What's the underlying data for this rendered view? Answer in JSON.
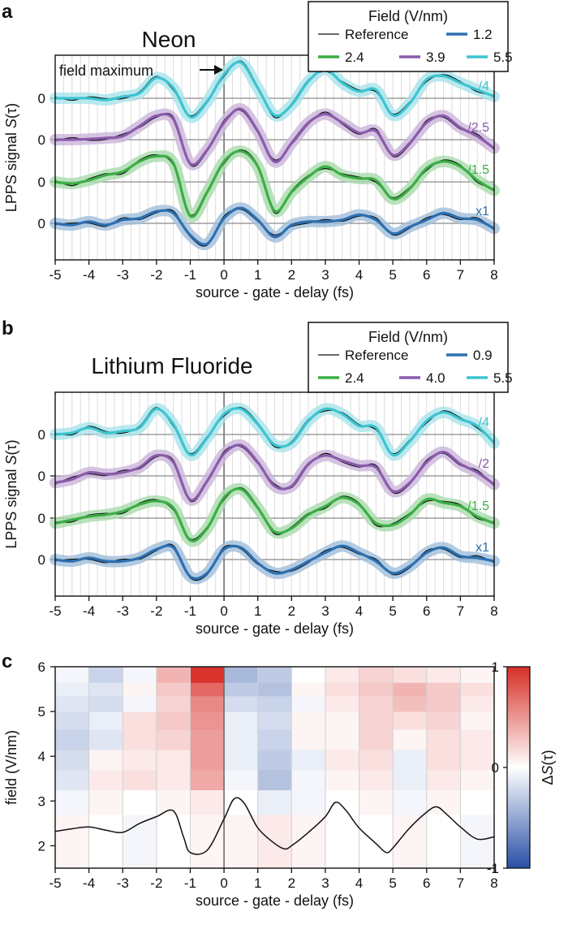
{
  "panels": [
    {
      "letter": "a",
      "title": "Neon",
      "legend_title": "Field (V/nm)",
      "ylabel_prefix": "LPPS signal ",
      "ylabel_italic": "S",
      "ylabel_arg": "(τ)",
      "xlabel": "source - gate - delay (fs)",
      "annotation": "field maximum",
      "legend": [
        {
          "label": "Reference",
          "color": "#111111"
        },
        {
          "label": "1.2",
          "color": "#2c6fb0"
        },
        {
          "label": "2.4",
          "color": "#3cae45"
        },
        {
          "label": "3.9",
          "color": "#8a5bab"
        },
        {
          "label": "5.5",
          "color": "#3cc4d0"
        }
      ],
      "scale_labels": [
        "/4",
        "/2.5",
        "/1.5",
        "x1"
      ]
    },
    {
      "letter": "b",
      "title": "Lithium Fluoride",
      "legend_title": "Field (V/nm)",
      "ylabel_prefix": "LPPS signal ",
      "ylabel_italic": "S",
      "ylabel_arg": "(τ)",
      "xlabel": "source - gate - delay (fs)",
      "legend": [
        {
          "label": "Reference",
          "color": "#111111"
        },
        {
          "label": "0.9",
          "color": "#2c6fb0"
        },
        {
          "label": "2.4",
          "color": "#3cae45"
        },
        {
          "label": "4.0",
          "color": "#8a5bab"
        },
        {
          "label": "5.5",
          "color": "#3cc4d0"
        }
      ],
      "scale_labels": [
        "/4",
        "/2",
        "/1.5",
        "x1"
      ]
    },
    {
      "letter": "c",
      "ylabel": "field (V/nm)",
      "xlabel": "source - gate - delay (fs)",
      "colorbar_label_prefix": "Δ",
      "colorbar_label_italic": "S",
      "colorbar_label_arg": "(τ)",
      "colorbar_ticks": [
        "1",
        "0",
        "-1"
      ]
    }
  ],
  "chart_data": [
    {
      "type": "line",
      "panel": "a",
      "title": "Neon",
      "xlabel": "source - gate - delay (fs)",
      "ylabel": "LPPS signal S(τ)",
      "xlim": [
        -5,
        8
      ],
      "xticks": [
        -5,
        -4,
        -3,
        -2,
        -1,
        0,
        1,
        2,
        3,
        4,
        5,
        6,
        7,
        8
      ],
      "ytick_label": "0",
      "series": [
        {
          "name": "5.5",
          "scale": "/4",
          "color": "#3cc4d0",
          "x": [
            -5,
            -4.5,
            -4,
            -3.5,
            -3,
            -2.5,
            -2,
            -1.5,
            -1,
            -0.5,
            0,
            0.5,
            1,
            1.5,
            2,
            2.5,
            3,
            3.5,
            4,
            4.5,
            5,
            5.5,
            6,
            6.5,
            7,
            7.5,
            8
          ],
          "y": [
            0,
            0,
            0,
            -0.05,
            0.05,
            0.15,
            0.6,
            0.3,
            -0.55,
            -0.1,
            0.7,
            1.05,
            0.3,
            -0.5,
            -0.2,
            0.5,
            0.85,
            0.45,
            0.2,
            0.25,
            -0.5,
            -0.15,
            0.55,
            0.65,
            0.45,
            0.25,
            0.05
          ]
        },
        {
          "name": "3.9",
          "scale": "/2.5",
          "color": "#8a5bab",
          "x": [
            -5,
            -4.5,
            -4,
            -3.5,
            -3,
            -2.5,
            -2,
            -1.5,
            -1,
            -0.5,
            0,
            0.5,
            1,
            1.5,
            2,
            2.5,
            3,
            3.5,
            4,
            4.5,
            5,
            5.5,
            6,
            6.5,
            7,
            7.5,
            8
          ],
          "y": [
            0,
            0,
            0.02,
            0.05,
            0.1,
            0.4,
            0.7,
            0.6,
            -0.7,
            -0.3,
            0.5,
            0.9,
            0.25,
            -0.65,
            -0.1,
            0.5,
            0.75,
            0.5,
            0.2,
            0.25,
            -0.45,
            -0.1,
            0.5,
            0.7,
            0.35,
            0.1,
            -0.25
          ]
        },
        {
          "name": "2.4",
          "scale": "/1.5",
          "color": "#3cae45",
          "x": [
            -5,
            -4.5,
            -4,
            -3.5,
            -3,
            -2.5,
            -2,
            -1.5,
            -1,
            -0.5,
            0,
            0.5,
            1,
            1.5,
            2,
            2.5,
            3,
            3.5,
            4,
            4.5,
            5,
            5.5,
            6,
            6.5,
            7,
            7.5,
            8
          ],
          "y": [
            0,
            -0.05,
            0.05,
            0.2,
            0.3,
            0.6,
            0.75,
            0.55,
            -1.0,
            -0.3,
            0.6,
            0.9,
            0.45,
            -0.85,
            -0.3,
            0.15,
            0.45,
            0.2,
            0.1,
            0.05,
            -0.5,
            -0.2,
            0.4,
            0.6,
            0.45,
            0.05,
            -0.25
          ]
        },
        {
          "name": "1.2",
          "scale": "x1",
          "color": "#2c6fb0",
          "x": [
            -5,
            -4.5,
            -4,
            -3.5,
            -3,
            -2.5,
            -2,
            -1.5,
            -1,
            -0.5,
            0,
            0.5,
            1,
            1.5,
            2,
            2.5,
            3,
            3.5,
            4,
            4.5,
            5,
            5.5,
            6,
            6.5,
            7,
            7.5,
            8
          ],
          "y": [
            0,
            -0.05,
            0.05,
            -0.05,
            0.1,
            0.15,
            0.35,
            0.3,
            -0.35,
            -0.6,
            0.15,
            0.45,
            0.1,
            -0.4,
            -0.05,
            0.05,
            0.05,
            0.1,
            0.25,
            0.1,
            -0.3,
            -0.1,
            0.1,
            0.3,
            0.15,
            0.1,
            -0.15
          ]
        }
      ]
    },
    {
      "type": "line",
      "panel": "b",
      "title": "Lithium Fluoride",
      "xlabel": "source - gate - delay (fs)",
      "ylabel": "LPPS signal S(τ)",
      "xlim": [
        -5,
        8
      ],
      "xticks": [
        -5,
        -4,
        -3,
        -2,
        -1,
        0,
        1,
        2,
        3,
        4,
        5,
        6,
        7,
        8
      ],
      "ytick_label": "0",
      "series": [
        {
          "name": "5.5",
          "scale": "/4",
          "color": "#3cc4d0",
          "x": [
            -5,
            -4.5,
            -4,
            -3.5,
            -3,
            -2.5,
            -2,
            -1.5,
            -1,
            -0.5,
            0,
            0.5,
            1,
            1.5,
            2,
            2.5,
            3,
            3.5,
            4,
            4.5,
            5,
            5.5,
            6,
            6.5,
            7,
            7.5,
            8
          ],
          "y": [
            0,
            0.05,
            0.2,
            0.05,
            0.1,
            0.2,
            0.75,
            0.3,
            -0.6,
            -0.1,
            0.6,
            0.75,
            0.3,
            -0.3,
            -0.25,
            0.4,
            0.75,
            0.6,
            0.25,
            0.2,
            -0.6,
            -0.2,
            0.4,
            0.65,
            0.45,
            0.25,
            -0.25
          ]
        },
        {
          "name": "4.0",
          "scale": "/2",
          "color": "#8a5bab",
          "x": [
            -5,
            -4.5,
            -4,
            -3.5,
            -3,
            -2.5,
            -2,
            -1.5,
            -1,
            -0.5,
            0,
            0.5,
            1,
            1.5,
            2,
            2.5,
            3,
            3.5,
            4,
            4.5,
            5,
            5.5,
            6,
            6.5,
            7,
            7.5,
            8
          ],
          "y": [
            -0.2,
            -0.1,
            0.1,
            0.05,
            0.1,
            0.25,
            0.6,
            0.4,
            -0.7,
            -0.15,
            0.65,
            0.9,
            0.4,
            -0.3,
            -0.3,
            0.35,
            0.6,
            0.45,
            0.3,
            0.25,
            -0.45,
            -0.2,
            0.4,
            0.7,
            0.35,
            0.1,
            -0.25
          ]
        },
        {
          "name": "2.4",
          "scale": "/1.5",
          "color": "#3cae45",
          "x": [
            -5,
            -4.5,
            -4,
            -3.5,
            -3,
            -2.5,
            -2,
            -1.5,
            -1,
            -0.5,
            0,
            0.5,
            1,
            1.5,
            2,
            2.5,
            3,
            3.5,
            4,
            4.5,
            5,
            5.5,
            6,
            6.5,
            7,
            7.5,
            8
          ],
          "y": [
            -0.15,
            -0.05,
            0.05,
            0.1,
            0.2,
            0.4,
            0.5,
            0.3,
            -0.65,
            -0.3,
            0.6,
            0.85,
            0.3,
            -0.4,
            -0.3,
            0.1,
            0.35,
            0.6,
            0.4,
            -0.15,
            -0.2,
            0.1,
            0.55,
            0.45,
            0.35,
            0.05,
            -0.15
          ]
        },
        {
          "name": "0.9",
          "scale": "x1",
          "color": "#2c6fb0",
          "x": [
            -5,
            -4.5,
            -4,
            -3.5,
            -3,
            -2.5,
            -2,
            -1.5,
            -1,
            -0.5,
            0,
            0.5,
            1,
            1.5,
            2,
            2.5,
            3,
            3.5,
            4,
            4.5,
            5,
            5.5,
            6,
            6.5,
            7,
            7.5,
            8
          ],
          "y": [
            0,
            -0.05,
            0.05,
            -0.05,
            -0.05,
            0.05,
            0.3,
            0.35,
            -0.5,
            -0.4,
            0.3,
            0.35,
            -0.1,
            -0.4,
            -0.3,
            -0.05,
            0.2,
            0.4,
            0.2,
            -0.05,
            -0.4,
            -0.2,
            0.2,
            0.35,
            0.1,
            0.05,
            -0.05
          ]
        }
      ]
    },
    {
      "type": "heatmap",
      "panel": "c",
      "xlabel": "source - gate - delay (fs)",
      "ylabel": "field (V/nm)",
      "colorbar_label": "ΔS(τ)",
      "xlim": [
        -5,
        8
      ],
      "ylim": [
        1.5,
        6
      ],
      "xticks": [
        -5,
        -4,
        -3,
        -2,
        -1,
        0,
        1,
        2,
        3,
        4,
        5,
        6,
        7,
        8
      ],
      "yticks": [
        2,
        3,
        4,
        5,
        6
      ],
      "clim": [
        -1,
        1
      ],
      "field_rows": [
        2.4,
        3.0,
        3.5,
        3.9,
        4.4,
        4.8,
        5.2,
        5.5,
        5.8
      ],
      "time_cols": [
        -5,
        -4,
        -3,
        -2,
        -1,
        0,
        1,
        2,
        3,
        4,
        5,
        6,
        7
      ],
      "values": [
        [
          0.05,
          0.0,
          -0.05,
          0.0,
          0.05,
          0.05,
          0.1,
          0.05,
          0.0,
          0.0,
          0.05,
          0.0,
          -0.05
        ],
        [
          -0.05,
          0.05,
          0.0,
          0.05,
          0.1,
          0.0,
          -0.1,
          -0.05,
          0.0,
          0.05,
          -0.05,
          0.05,
          0.0
        ],
        [
          -0.15,
          0.1,
          0.15,
          0.1,
          0.4,
          -0.05,
          -0.35,
          -0.05,
          0.05,
          0.1,
          -0.1,
          0.1,
          0.05
        ],
        [
          -0.2,
          0.05,
          0.1,
          0.1,
          0.45,
          -0.1,
          -0.3,
          -0.1,
          0.1,
          0.15,
          -0.1,
          0.15,
          0.1
        ],
        [
          -0.25,
          -0.15,
          0.15,
          0.2,
          0.45,
          -0.1,
          -0.25,
          0.05,
          0.05,
          0.2,
          0.05,
          0.15,
          0.1
        ],
        [
          -0.2,
          -0.1,
          0.15,
          0.25,
          0.5,
          -0.1,
          -0.2,
          0.05,
          0.05,
          0.2,
          0.15,
          0.2,
          0.05
        ],
        [
          -0.15,
          -0.2,
          -0.05,
          0.2,
          0.55,
          -0.2,
          -0.25,
          -0.05,
          0.1,
          0.2,
          0.3,
          0.25,
          0.1
        ],
        [
          -0.1,
          -0.15,
          0.05,
          0.25,
          0.7,
          -0.3,
          -0.35,
          0.05,
          0.15,
          0.25,
          0.35,
          0.25,
          0.15
        ],
        [
          -0.05,
          -0.25,
          -0.05,
          0.35,
          0.95,
          -0.4,
          -0.3,
          0.0,
          0.1,
          0.2,
          0.15,
          0.1,
          0.05
        ]
      ],
      "overlay_line": {
        "x": [
          -5,
          -4.5,
          -4,
          -3.5,
          -3,
          -2.5,
          -2,
          -1.5,
          -1.2,
          -1,
          -0.5,
          0,
          0.3,
          0.6,
          1,
          1.5,
          1.8,
          2,
          2.5,
          3,
          3.3,
          3.6,
          4,
          4.5,
          4.8,
          5,
          5.5,
          6,
          6.3,
          6.6,
          7,
          7.5,
          8
        ],
        "y": [
          2.32,
          2.38,
          2.42,
          2.35,
          2.3,
          2.5,
          2.65,
          2.78,
          2.2,
          1.85,
          1.9,
          2.6,
          3.05,
          2.95,
          2.4,
          2.05,
          1.93,
          2.0,
          2.3,
          2.65,
          2.97,
          2.8,
          2.4,
          2.05,
          1.85,
          1.95,
          2.4,
          2.75,
          2.87,
          2.7,
          2.42,
          2.15,
          2.2
        ]
      }
    }
  ]
}
